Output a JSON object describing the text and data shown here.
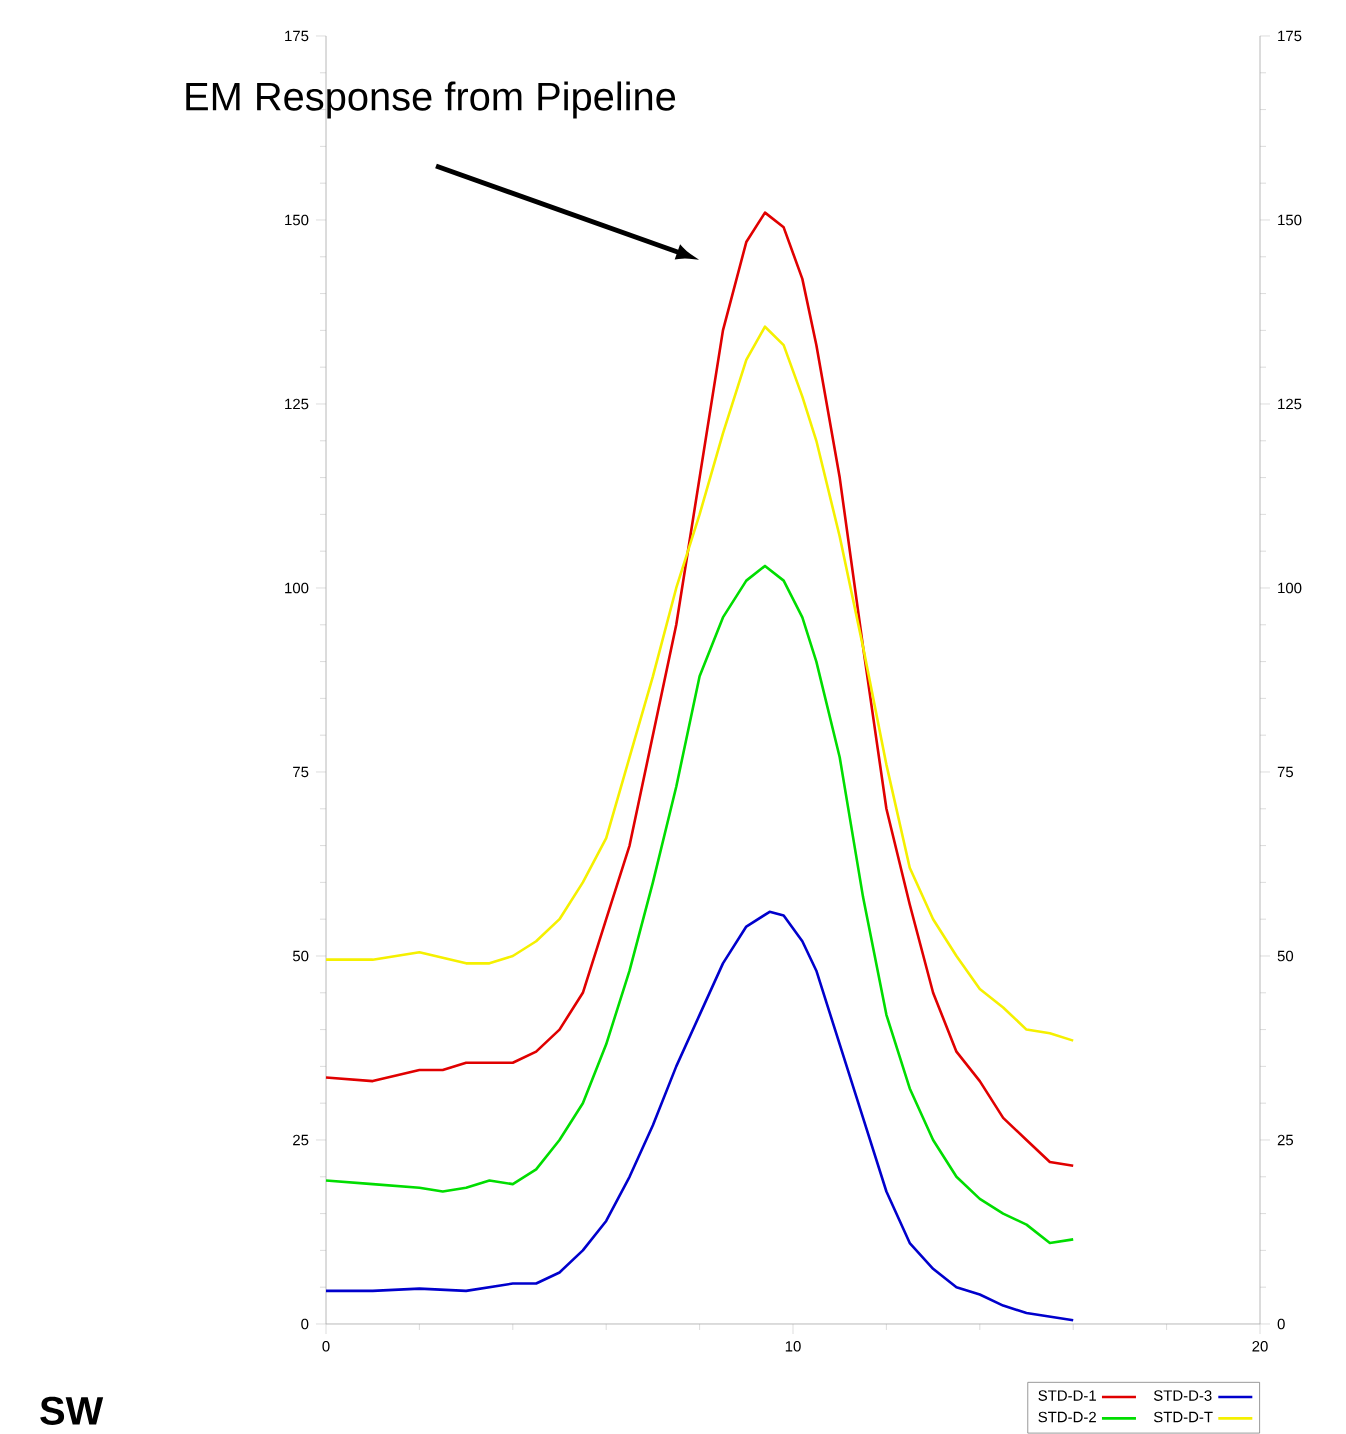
{
  "chart_data": {
    "type": "line",
    "xlim": [
      0,
      20
    ],
    "xticks": [
      0,
      10,
      20
    ],
    "ylim": [
      0,
      175
    ],
    "yticks": [
      0,
      25,
      50,
      75,
      100,
      125,
      150,
      175
    ],
    "y2lim": [
      0,
      175
    ],
    "y2ticks": [
      0,
      25,
      50,
      75,
      100,
      125,
      150,
      175
    ],
    "legend": "bottom right",
    "grid": false,
    "marker": "none",
    "line_style": "solid",
    "annotations": [
      "EM Response from Pipeline",
      "SW"
    ],
    "series": [
      {
        "name": "STD-D-1",
        "color": "#e00000",
        "x": [
          0,
          1,
          2,
          2.5,
          3,
          4,
          4.5,
          5,
          5.5,
          6,
          6.5,
          7,
          7.5,
          8,
          8.5,
          9,
          9.4,
          9.8,
          10.2,
          10.5,
          11,
          11.5,
          12,
          12.5,
          13,
          13.5,
          14,
          14.5,
          15,
          15.5,
          16
        ],
        "values": [
          33.5,
          33,
          34.5,
          34.5,
          35.5,
          35.5,
          37,
          40,
          45,
          55,
          65,
          80,
          95,
          115,
          135,
          147,
          151,
          149,
          142,
          133,
          115,
          92,
          70,
          57,
          45,
          37,
          33,
          28,
          25,
          22,
          21.5
        ]
      },
      {
        "name": "STD-D-2",
        "color": "#00dd00",
        "x": [
          0,
          1,
          2,
          2.5,
          3,
          3.5,
          4,
          4.5,
          5,
          5.5,
          6,
          6.5,
          7,
          7.5,
          8,
          8.5,
          9,
          9.4,
          9.8,
          10.2,
          10.5,
          11,
          11.5,
          12,
          12.5,
          13,
          13.5,
          14,
          14.5,
          15,
          15.5,
          16
        ],
        "values": [
          19.5,
          19,
          18.5,
          18,
          18.5,
          19.5,
          19,
          21,
          25,
          30,
          38,
          48,
          60,
          73,
          88,
          96,
          101,
          103,
          101,
          96,
          90,
          77,
          58,
          42,
          32,
          25,
          20,
          17,
          15,
          13.5,
          11,
          11.5
        ]
      },
      {
        "name": "STD-D-3",
        "color": "#0000cc",
        "x": [
          0,
          1,
          2,
          3,
          4,
          4.5,
          5,
          5.5,
          6,
          6.5,
          7,
          7.5,
          8,
          8.5,
          9,
          9.5,
          9.8,
          10.2,
          10.5,
          11,
          11.5,
          12,
          12.5,
          13,
          13.5,
          14,
          14.5,
          15,
          16
        ],
        "values": [
          4.5,
          4.5,
          4.8,
          4.5,
          5.5,
          5.5,
          7,
          10,
          14,
          20,
          27,
          35,
          42,
          49,
          54,
          56,
          55.5,
          52,
          48,
          38,
          28,
          18,
          11,
          7.5,
          5,
          4,
          2.5,
          1.5,
          0.5
        ]
      },
      {
        "name": "STD-D-T",
        "color": "#f5f000",
        "x": [
          0,
          1,
          2,
          3,
          3.5,
          4,
          4.5,
          5,
          5.5,
          6,
          6.5,
          7,
          7.5,
          8,
          8.5,
          9,
          9.4,
          9.8,
          10.2,
          10.5,
          11,
          11.5,
          12,
          12.5,
          13,
          13.5,
          14,
          14.5,
          15,
          15.5,
          16
        ],
        "values": [
          49.5,
          49.5,
          50.5,
          49,
          49,
          50,
          52,
          55,
          60,
          66,
          77,
          88,
          100,
          110,
          121,
          131,
          135.5,
          133,
          126,
          120,
          107,
          92,
          76,
          62,
          55,
          50,
          45.5,
          43,
          40,
          39.5,
          38.5
        ]
      }
    ]
  }
}
